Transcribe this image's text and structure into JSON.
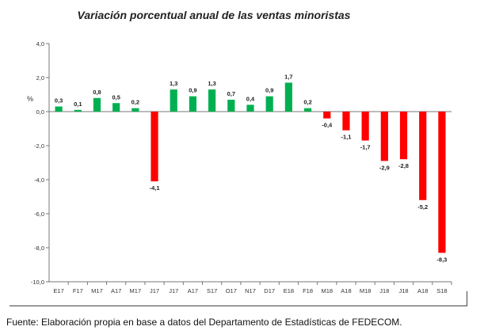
{
  "chart_data": {
    "type": "bar",
    "title": "Variación porcentual anual de las ventas minoristas",
    "ylabel": "%",
    "ylim": [
      -10.0,
      4.0
    ],
    "yticks": [
      "4,0",
      "2,0",
      "0,0",
      "-2,0",
      "-4,0",
      "-6,0",
      "-8,0",
      "-10,0"
    ],
    "categories": [
      "E17",
      "F17",
      "M17",
      "A17",
      "M17",
      "J17",
      "J17",
      "A17",
      "S17",
      "O17",
      "N17",
      "D17",
      "E18",
      "F18",
      "M18",
      "A18",
      "M18",
      "J18",
      "J18",
      "A18",
      "S18"
    ],
    "values": [
      0.3,
      0.1,
      0.8,
      0.5,
      0.2,
      -4.1,
      1.3,
      0.9,
      1.3,
      0.7,
      0.4,
      0.9,
      1.7,
      0.2,
      -0.4,
      -1.1,
      -1.7,
      -2.9,
      -2.8,
      -5.2,
      -8.3
    ],
    "labels": [
      "0,3",
      "0,1",
      "0,8",
      "0,5",
      "0,2",
      "-4,1",
      "1,3",
      "0,9",
      "1,3",
      "0,7",
      "0,4",
      "0,9",
      "1,7",
      "0,2",
      "-0,4",
      "-1,1",
      "-1,7",
      "-2,9",
      "-2,8",
      "-5,2",
      "-8,3"
    ],
    "colors": {
      "positive": "#00b050",
      "negative": "#ff0000"
    },
    "grid": false,
    "legend": "none"
  },
  "source": "Fuente: Elaboración propia en base a datos del Departamento de Estadísticas de FEDECOM."
}
